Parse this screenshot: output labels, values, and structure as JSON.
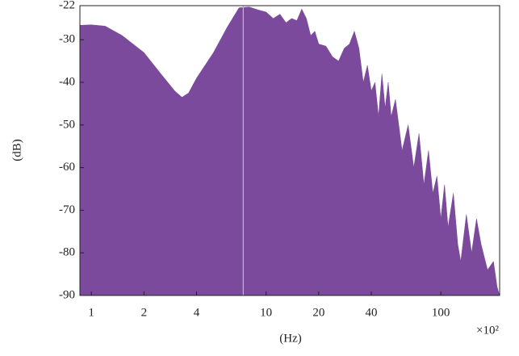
{
  "chart_data": {
    "type": "area",
    "x": [
      0.86,
      1.0,
      1.2,
      1.5,
      2,
      2.5,
      3,
      3.3,
      3.6,
      4,
      5,
      6,
      7,
      8,
      9,
      10,
      11,
      12,
      13,
      14,
      15,
      16,
      17,
      18,
      19,
      20,
      22,
      24,
      26,
      28,
      30,
      32,
      34,
      36,
      38,
      40,
      42,
      44,
      46,
      48,
      50,
      52,
      55,
      60,
      65,
      70,
      75,
      80,
      85,
      90,
      95,
      100,
      105,
      110,
      118,
      125,
      130,
      140,
      150,
      160,
      170,
      185,
      200,
      210,
      217
    ],
    "y": [
      -26.6,
      -26.5,
      -26.8,
      -29,
      -33,
      -38,
      -42,
      -43.5,
      -42.5,
      -39,
      -33,
      -27,
      -22.5,
      -22.3,
      -23,
      -23.5,
      -25,
      -24,
      -26,
      -25,
      -25.5,
      -22.8,
      -25,
      -29,
      -28,
      -31,
      -31.5,
      -34,
      -35,
      -32,
      -31,
      -28,
      -32,
      -40,
      -36,
      -42,
      -40,
      -48,
      -38,
      -46,
      -40,
      -48,
      -44,
      -56,
      -50,
      -60,
      -52,
      -64,
      -56,
      -66,
      -62,
      -72,
      -64,
      -74,
      -66,
      -78,
      -82,
      -71,
      -80,
      -72,
      -78,
      -84,
      -82,
      -88,
      -90
    ],
    "color": "#7b4a9c",
    "xlabel": "(Hz)",
    "ylabel": "(dB)",
    "x_multiplier": "×10²",
    "xscale": "log",
    "xlim": [
      0.86,
      217
    ],
    "ylim": [
      -90,
      -22
    ],
    "xticks": [
      1,
      2,
      4,
      10,
      20,
      40,
      100
    ],
    "yticks": [
      -90,
      -80,
      -70,
      -60,
      -50,
      -40,
      -30,
      -22
    ],
    "vline": 7.4
  }
}
